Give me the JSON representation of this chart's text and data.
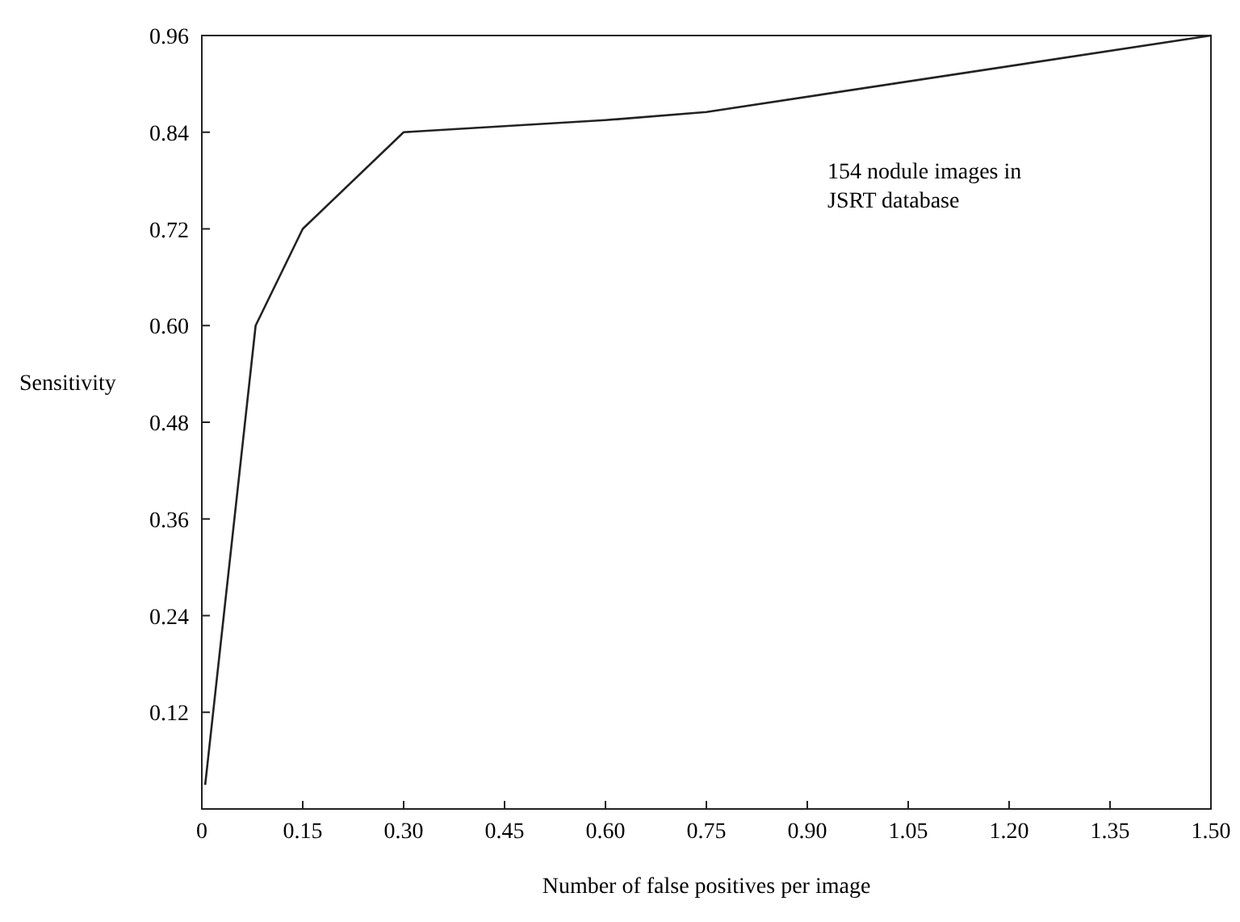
{
  "chart_data": {
    "type": "line",
    "xlabel": "Number of false positives per image",
    "ylabel": "Sensitivity",
    "x": [
      0.005,
      0.08,
      0.15,
      0.3,
      0.6,
      0.75,
      1.5
    ],
    "series": [
      {
        "color": "#222222",
        "values": [
          0.03,
          0.6,
          0.72,
          0.84,
          0.855,
          0.865,
          0.96
        ]
      }
    ],
    "xlim": [
      0,
      1.5
    ],
    "ylim": [
      0,
      0.96
    ],
    "xticks": [
      0,
      0.15,
      {
        "value": 0.3,
        "label": "0.30"
      },
      0.45,
      {
        "value": 0.6,
        "label": "0.60"
      },
      0.75,
      {
        "value": 0.9,
        "label": "0.90"
      },
      1.05,
      {
        "value": 1.2,
        "label": "1.20"
      },
      1.35,
      {
        "value": 1.5,
        "label": "1.50"
      }
    ],
    "yticks": [
      0.12,
      0.24,
      0.36,
      0.48,
      {
        "value": 0.6,
        "label": "0.60"
      },
      0.72,
      0.84,
      0.96
    ],
    "annotations": [
      "154 nodule images in\nJSRT database"
    ],
    "grid": false,
    "marker": "none",
    "line_style": "solid"
  }
}
